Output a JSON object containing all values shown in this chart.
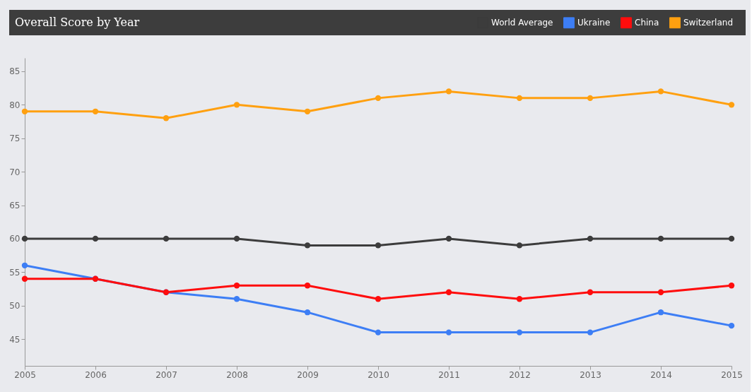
{
  "chart_data": {
    "type": "line",
    "title": "Overall Score by Year",
    "x": [
      2005,
      2006,
      2007,
      2008,
      2009,
      2010,
      2011,
      2012,
      2013,
      2014,
      2015
    ],
    "series": [
      {
        "name": "World Average",
        "color": "#3c3c3c",
        "values": [
          60,
          60,
          60,
          60,
          59,
          59,
          60,
          59,
          60,
          60,
          60
        ]
      },
      {
        "name": "Ukraine",
        "color": "#3d7ef5",
        "values": [
          56,
          54,
          52,
          51,
          49,
          46,
          46,
          46,
          46,
          49,
          47
        ]
      },
      {
        "name": "China",
        "color": "#ff0d0d",
        "values": [
          54,
          54,
          52,
          53,
          53,
          51,
          52,
          51,
          52,
          52,
          53
        ]
      },
      {
        "name": "Switzerland",
        "color": "#ffa010",
        "values": [
          79,
          79,
          78,
          80,
          79,
          81,
          82,
          81,
          81,
          82,
          80
        ]
      }
    ],
    "xlim": [
      2005,
      2015
    ],
    "xticks": [
      2005,
      2006,
      2007,
      2008,
      2009,
      2010,
      2011,
      2012,
      2013,
      2014,
      2015
    ],
    "ylim": [
      41,
      87
    ],
    "yticks": [
      45,
      50,
      55,
      60,
      65,
      70,
      75,
      80,
      85
    ],
    "grid": false,
    "legend": "top right",
    "marker": "circle",
    "line_style": "solid"
  }
}
